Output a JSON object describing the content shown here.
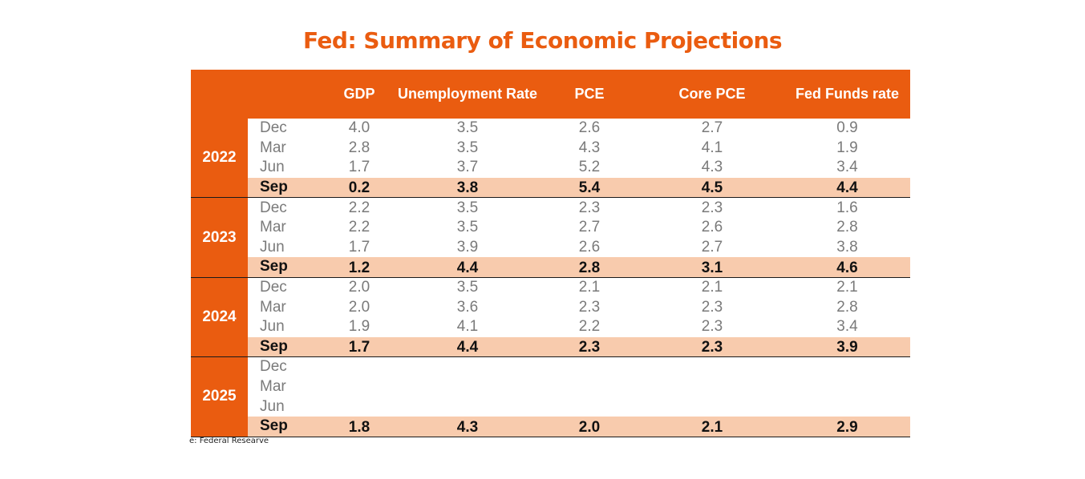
{
  "title": "Fed: Summary of Economic Projections",
  "headers": {
    "gdp": "GDP",
    "unemployment": "Unemployment Rate",
    "pce": "PCE",
    "core_pce": "Core PCE",
    "fed_funds": "Fed Funds rate"
  },
  "years": [
    {
      "year": "2022",
      "rows": [
        {
          "month": "Dec",
          "gdp": "4.0",
          "unemployment": "3.5",
          "pce": "2.6",
          "core_pce": "2.7",
          "fed_funds": "0.9"
        },
        {
          "month": "Mar",
          "gdp": "2.8",
          "unemployment": "3.5",
          "pce": "4.3",
          "core_pce": "4.1",
          "fed_funds": "1.9"
        },
        {
          "month": "Jun",
          "gdp": "1.7",
          "unemployment": "3.7",
          "pce": "5.2",
          "core_pce": "4.3",
          "fed_funds": "3.4"
        },
        {
          "month": "Sep",
          "gdp": "0.2",
          "unemployment": "3.8",
          "pce": "5.4",
          "core_pce": "4.5",
          "fed_funds": "4.4"
        }
      ]
    },
    {
      "year": "2023",
      "rows": [
        {
          "month": "Dec",
          "gdp": "2.2",
          "unemployment": "3.5",
          "pce": "2.3",
          "core_pce": "2.3",
          "fed_funds": "1.6"
        },
        {
          "month": "Mar",
          "gdp": "2.2",
          "unemployment": "3.5",
          "pce": "2.7",
          "core_pce": "2.6",
          "fed_funds": "2.8"
        },
        {
          "month": "Jun",
          "gdp": "1.7",
          "unemployment": "3.9",
          "pce": "2.6",
          "core_pce": "2.7",
          "fed_funds": "3.8"
        },
        {
          "month": "Sep",
          "gdp": "1.2",
          "unemployment": "4.4",
          "pce": "2.8",
          "core_pce": "3.1",
          "fed_funds": "4.6"
        }
      ]
    },
    {
      "year": "2024",
      "rows": [
        {
          "month": "Dec",
          "gdp": "2.0",
          "unemployment": "3.5",
          "pce": "2.1",
          "core_pce": "2.1",
          "fed_funds": "2.1"
        },
        {
          "month": "Mar",
          "gdp": "2.0",
          "unemployment": "3.6",
          "pce": "2.3",
          "core_pce": "2.3",
          "fed_funds": "2.8"
        },
        {
          "month": "Jun",
          "gdp": "1.9",
          "unemployment": "4.1",
          "pce": "2.2",
          "core_pce": "2.3",
          "fed_funds": "3.4"
        },
        {
          "month": "Sep",
          "gdp": "1.7",
          "unemployment": "4.4",
          "pce": "2.3",
          "core_pce": "2.3",
          "fed_funds": "3.9"
        }
      ]
    },
    {
      "year": "2025",
      "rows": [
        {
          "month": "Dec",
          "gdp": "",
          "unemployment": "",
          "pce": "",
          "core_pce": "",
          "fed_funds": ""
        },
        {
          "month": "Mar",
          "gdp": "",
          "unemployment": "",
          "pce": "",
          "core_pce": "",
          "fed_funds": ""
        },
        {
          "month": "Jun",
          "gdp": "",
          "unemployment": "",
          "pce": "",
          "core_pce": "",
          "fed_funds": ""
        },
        {
          "month": "Sep",
          "gdp": "1.8",
          "unemployment": "4.3",
          "pce": "2.0",
          "core_pce": "2.1",
          "fed_funds": "2.9"
        }
      ]
    }
  ],
  "source": "e: Federal Researve",
  "colors": {
    "accent": "#ea5c10",
    "highlight_row": "#f8cbad"
  }
}
